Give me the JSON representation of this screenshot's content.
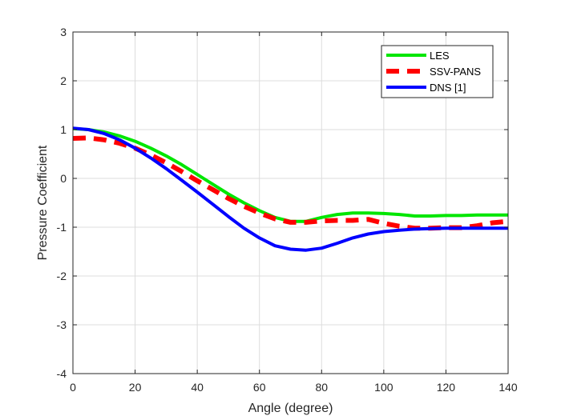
{
  "chart_data": {
    "type": "line",
    "xlabel": "Angle (degree)",
    "ylabel": "Pressure Coefficient",
    "xlim": [
      0,
      140
    ],
    "ylim": [
      -4,
      3
    ],
    "xticks": [
      0,
      20,
      40,
      60,
      80,
      100,
      120,
      140
    ],
    "yticks": [
      -4,
      -3,
      -2,
      -1,
      0,
      1,
      2,
      3
    ],
    "grid": true,
    "legend_position": "top-right",
    "series": [
      {
        "name": "LES",
        "color": "#00e600",
        "style": "solid",
        "x": [
          0,
          5,
          10,
          15,
          20,
          25,
          30,
          35,
          40,
          45,
          50,
          55,
          60,
          65,
          70,
          75,
          80,
          85,
          90,
          95,
          100,
          105,
          110,
          115,
          120,
          125,
          130,
          135,
          140
        ],
        "y": [
          1.02,
          1.0,
          0.95,
          0.87,
          0.76,
          0.62,
          0.46,
          0.28,
          0.08,
          -0.12,
          -0.32,
          -0.5,
          -0.66,
          -0.8,
          -0.88,
          -0.88,
          -0.8,
          -0.74,
          -0.71,
          -0.71,
          -0.72,
          -0.74,
          -0.77,
          -0.77,
          -0.76,
          -0.76,
          -0.75,
          -0.75,
          -0.75
        ]
      },
      {
        "name": "SSV-PANS",
        "color": "#ff0000",
        "style": "dashed",
        "x": [
          0,
          5,
          10,
          15,
          20,
          25,
          30,
          35,
          40,
          45,
          50,
          55,
          60,
          65,
          70,
          75,
          80,
          85,
          90,
          95,
          100,
          105,
          110,
          115,
          120,
          125,
          130,
          135,
          140
        ],
        "y": [
          0.82,
          0.83,
          0.79,
          0.72,
          0.62,
          0.48,
          0.32,
          0.14,
          -0.05,
          -0.23,
          -0.41,
          -0.57,
          -0.71,
          -0.83,
          -0.9,
          -0.9,
          -0.87,
          -0.86,
          -0.86,
          -0.84,
          -0.92,
          -0.98,
          -1.02,
          -1.02,
          -1.01,
          -1.01,
          -0.97,
          -0.91,
          -0.88
        ]
      },
      {
        "name": "DNS [1]",
        "color": "#0000ff",
        "style": "solid",
        "x": [
          0,
          5,
          10,
          15,
          20,
          25,
          30,
          35,
          40,
          45,
          50,
          55,
          60,
          65,
          70,
          75,
          80,
          85,
          90,
          95,
          100,
          105,
          110,
          115,
          120,
          125,
          130,
          135,
          140
        ],
        "y": [
          1.03,
          1.0,
          0.92,
          0.79,
          0.62,
          0.42,
          0.2,
          -0.04,
          -0.28,
          -0.53,
          -0.78,
          -1.02,
          -1.22,
          -1.38,
          -1.45,
          -1.47,
          -1.43,
          -1.33,
          -1.22,
          -1.14,
          -1.09,
          -1.06,
          -1.04,
          -1.03,
          -1.02,
          -1.02,
          -1.02,
          -1.02,
          -1.02
        ]
      }
    ]
  }
}
